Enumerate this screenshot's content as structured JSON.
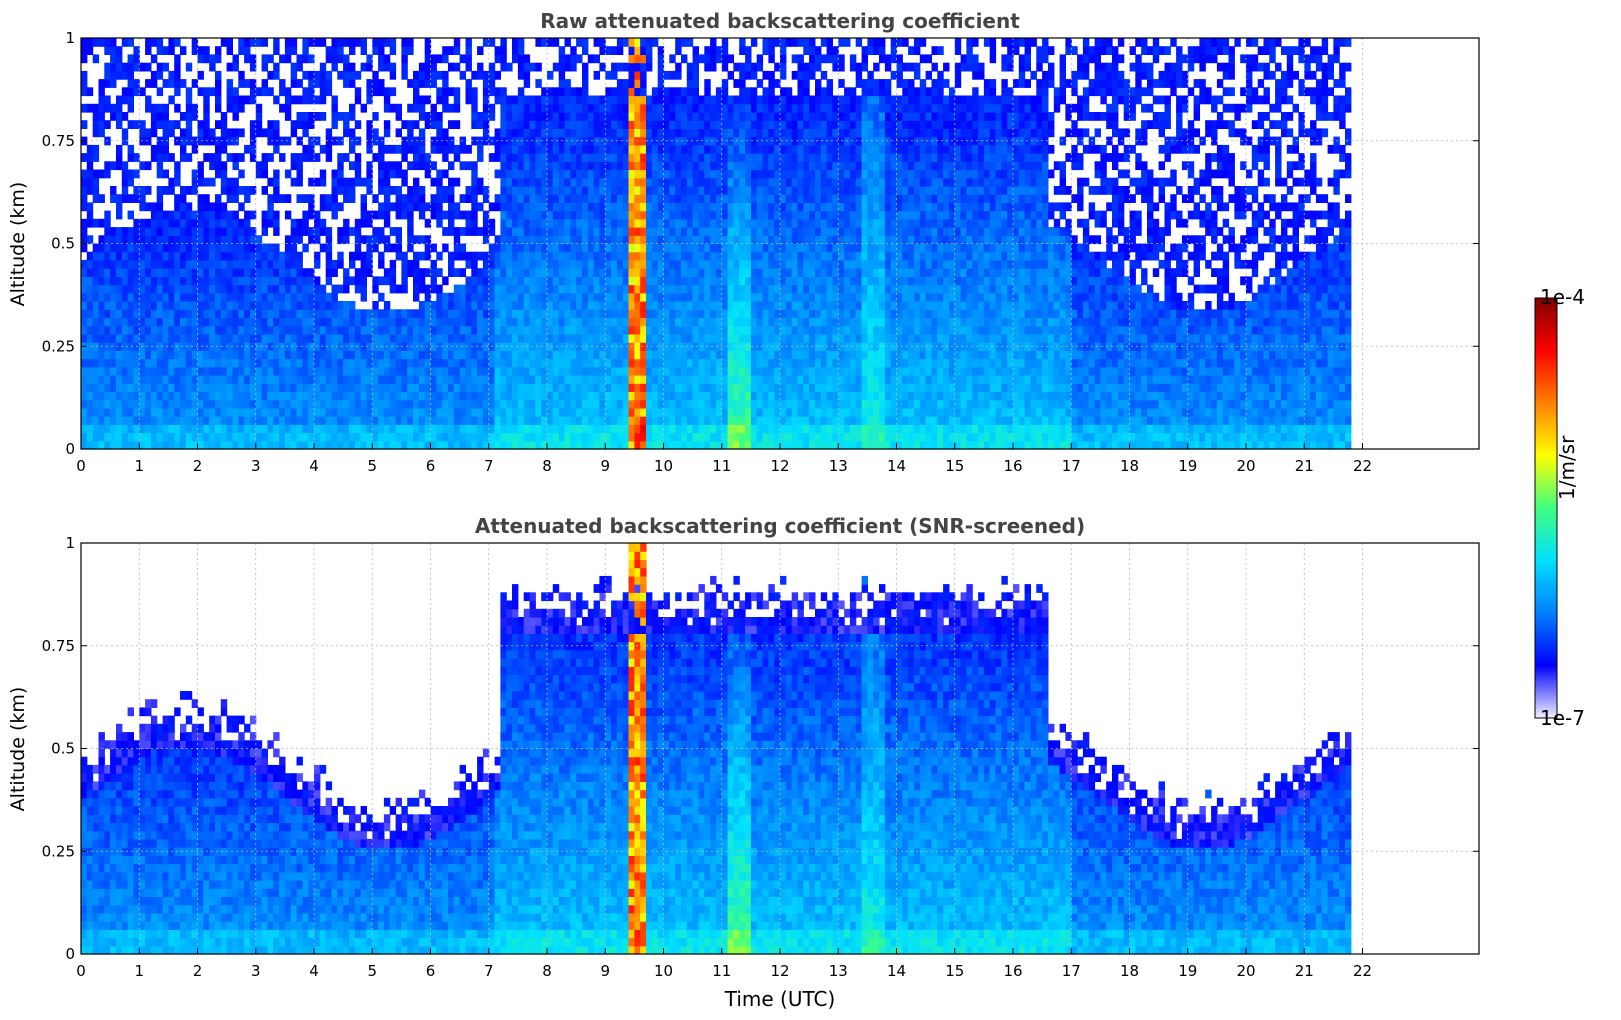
{
  "chart_data": [
    {
      "type": "heatmap",
      "title": "Raw attenuated backscattering coefficient",
      "xlabel": "",
      "ylabel": "Altitude (km)",
      "xlim": [
        0,
        24
      ],
      "ylim": [
        0,
        1
      ],
      "x_ticks": [
        "0",
        "1",
        "2",
        "3",
        "4",
        "5",
        "6",
        "7",
        "8",
        "9",
        "10",
        "11",
        "12",
        "13",
        "14",
        "15",
        "16",
        "17",
        "18",
        "19",
        "20",
        "21",
        "22"
      ],
      "y_ticks": [
        "0",
        "0.25",
        "0.5",
        "0.75",
        "1"
      ],
      "data_end_hour": 21.8,
      "grid": true,
      "features": [
        {
          "hour_start": 9.3,
          "hour_end": 9.6,
          "description": "strong signal column"
        },
        {
          "hour_start": 11.2,
          "hour_end": 11.4,
          "description": "enhanced signal"
        }
      ]
    },
    {
      "type": "heatmap",
      "title": "Attenuated backscattering coefficient (SNR-screened)",
      "xlabel": "Time (UTC)",
      "ylabel": "Altitude (km)",
      "xlim": [
        0,
        24
      ],
      "ylim": [
        0,
        1
      ],
      "x_ticks": [
        "0",
        "1",
        "2",
        "3",
        "4",
        "5",
        "6",
        "7",
        "8",
        "9",
        "10",
        "11",
        "12",
        "13",
        "14",
        "15",
        "16",
        "17",
        "18",
        "19",
        "20",
        "21",
        "22"
      ],
      "y_ticks": [
        "0",
        "0.25",
        "0.5",
        "0.75",
        "1"
      ],
      "data_end_hour": 21.8,
      "grid": true
    }
  ],
  "colorbar": {
    "max_label": "1e-4",
    "min_label": "1e-7",
    "unit": "1/m/sr",
    "colors": [
      "#f0f0ff",
      "#0000ff",
      "#0080ff",
      "#00e0ff",
      "#40ff80",
      "#ffff00",
      "#ff8000",
      "#ff0000",
      "#800000"
    ]
  }
}
